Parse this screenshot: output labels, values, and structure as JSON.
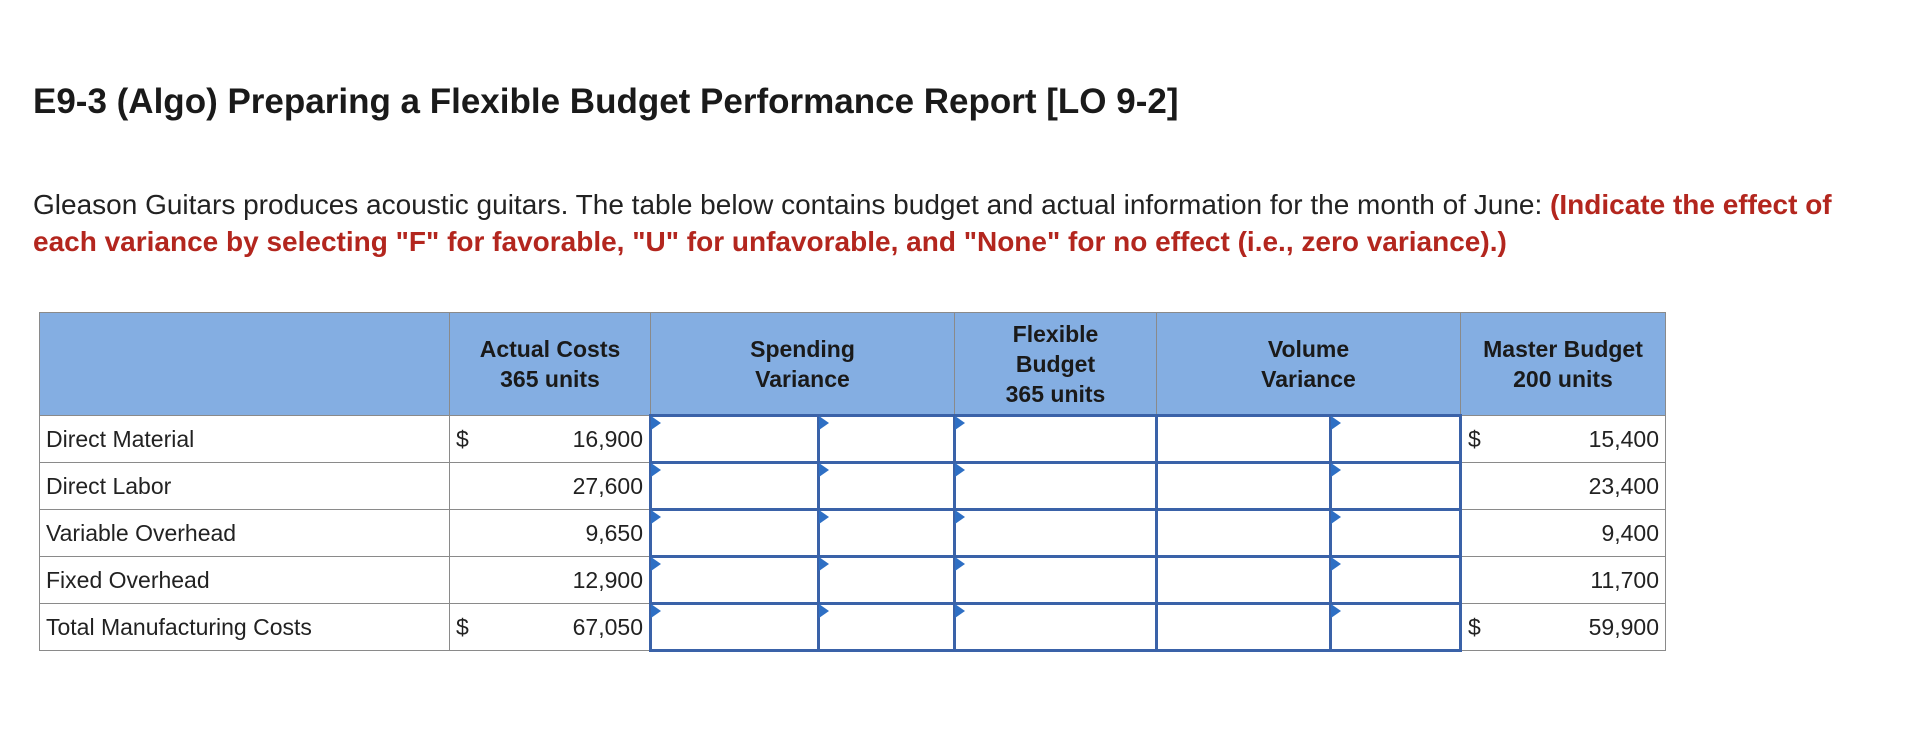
{
  "header": {
    "title": "E9-3 (Algo) Preparing a Flexible Budget Performance Report [LO 9-2]"
  },
  "instructions": {
    "text": "Gleason Guitars produces acoustic guitars. The table below contains budget and actual information for the month of June:",
    "emphasis": "(Indicate the effect of each variance by selecting \"F\" for favorable, \"U\" for unfavorable, and \"None\" for no effect (i.e., zero variance).)"
  },
  "table": {
    "columns": {
      "actual": [
        "Actual Costs",
        "365 units"
      ],
      "spending": [
        "Spending",
        "Variance"
      ],
      "flexible": [
        "Flexible",
        "Budget",
        "365 units"
      ],
      "volume": [
        "Volume",
        "Variance"
      ],
      "master": [
        "Master Budget",
        "200 units"
      ]
    },
    "rows": [
      {
        "label": "Direct Material",
        "actual_currency": "$",
        "actual": "16,900",
        "master_currency": "$",
        "master": "15,400"
      },
      {
        "label": "Direct Labor",
        "actual": "27,600",
        "master": "23,400"
      },
      {
        "label": "Variable Overhead",
        "actual": "9,650",
        "master": "9,400"
      },
      {
        "label": "Fixed Overhead",
        "actual": "12,900",
        "master": "11,700"
      },
      {
        "label": "Total Manufacturing Costs",
        "actual_currency": "$",
        "actual": "67,050",
        "master_currency": "$",
        "master": "59,900"
      }
    ]
  }
}
